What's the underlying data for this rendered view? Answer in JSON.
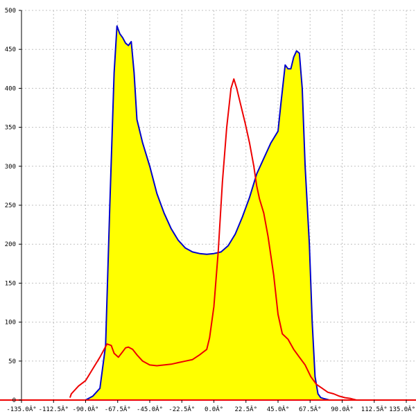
{
  "chart_data": {
    "type": "area",
    "title": "",
    "xlabel": "",
    "ylabel": "",
    "xlim": [
      -135,
      135
    ],
    "ylim": [
      0,
      500
    ],
    "grid": true,
    "x_ticks": [
      -135,
      -112.5,
      -90,
      -67.5,
      -45,
      -22.5,
      0,
      22.5,
      45,
      67.5,
      90,
      112.5,
      135
    ],
    "x_tick_labels": [
      "-135.0Â°",
      "-112.5Â°",
      "-90.0Â°",
      "-67.5Â°",
      "-45.0Â°",
      "-22.5Â°",
      "0.0Â°",
      "22.5Â°",
      "45.0Â°",
      "67.5Â°",
      "90.0Â°",
      "112.5Â°",
      "135.0Â°"
    ],
    "y_ticks": [
      0,
      50,
      100,
      150,
      200,
      250,
      300,
      350,
      400,
      450,
      500
    ],
    "y_tick_labels": [
      "0",
      "50",
      "100",
      "150",
      "200",
      "250",
      "300",
      "350",
      "400",
      "450",
      "500"
    ],
    "colors": {
      "fill": "#ffff00",
      "blue_line": "#0000cc",
      "red_line": "#ee0000",
      "grid": "#c0c0c0",
      "axis": "#000000"
    },
    "series": [
      {
        "color": "#0000cc",
        "filled": true,
        "x": [
          -100,
          -95,
          -90,
          -85,
          -80,
          -76,
          -73,
          -70,
          -68,
          -66,
          -64,
          -62,
          -60,
          -58,
          -56,
          -54,
          -50,
          -45,
          -40,
          -35,
          -30,
          -25,
          -20,
          -15,
          -10,
          -5,
          0,
          5,
          10,
          15,
          20,
          25,
          30,
          35,
          40,
          45,
          47,
          50,
          52,
          54,
          56,
          58,
          60,
          62,
          64,
          67,
          69,
          71,
          73,
          75,
          77,
          79,
          81,
          83,
          85,
          87,
          90,
          95,
          100
        ],
        "y": [
          0,
          0,
          0,
          5,
          15,
          70,
          250,
          420,
          480,
          470,
          465,
          458,
          455,
          460,
          420,
          360,
          330,
          300,
          265,
          240,
          220,
          205,
          195,
          190,
          188,
          187,
          188,
          190,
          198,
          213,
          235,
          260,
          290,
          310,
          330,
          345,
          380,
          430,
          425,
          425,
          440,
          448,
          445,
          400,
          300,
          200,
          100,
          30,
          8,
          3,
          2,
          1,
          0,
          0,
          0,
          0,
          0,
          0,
          0
        ]
      },
      {
        "color": "#ee0000",
        "filled": false,
        "x": [
          -101,
          -100,
          -95,
          -90,
          -85,
          -80,
          -77,
          -75,
          -72,
          -70,
          -67,
          -64,
          -62,
          -60,
          -57,
          -54,
          -50,
          -45,
          -40,
          -35,
          -30,
          -25,
          -20,
          -15,
          -10,
          -5,
          -3,
          0,
          3,
          6,
          9,
          12,
          14,
          16,
          18,
          20,
          22,
          25,
          28,
          30,
          32,
          35,
          38,
          42,
          45,
          48,
          52,
          56,
          60,
          64,
          68,
          72,
          76,
          80,
          84,
          88,
          92,
          96,
          100,
          102
        ],
        "y": [
          3,
          8,
          18,
          25,
          40,
          55,
          65,
          72,
          70,
          60,
          55,
          62,
          67,
          68,
          65,
          58,
          50,
          45,
          44,
          45,
          46,
          48,
          50,
          52,
          58,
          65,
          80,
          120,
          190,
          280,
          350,
          400,
          412,
          400,
          385,
          370,
          355,
          330,
          300,
          275,
          258,
          240,
          210,
          160,
          110,
          85,
          78,
          65,
          55,
          45,
          30,
          20,
          15,
          10,
          8,
          5,
          3,
          2,
          0,
          0
        ]
      }
    ]
  }
}
